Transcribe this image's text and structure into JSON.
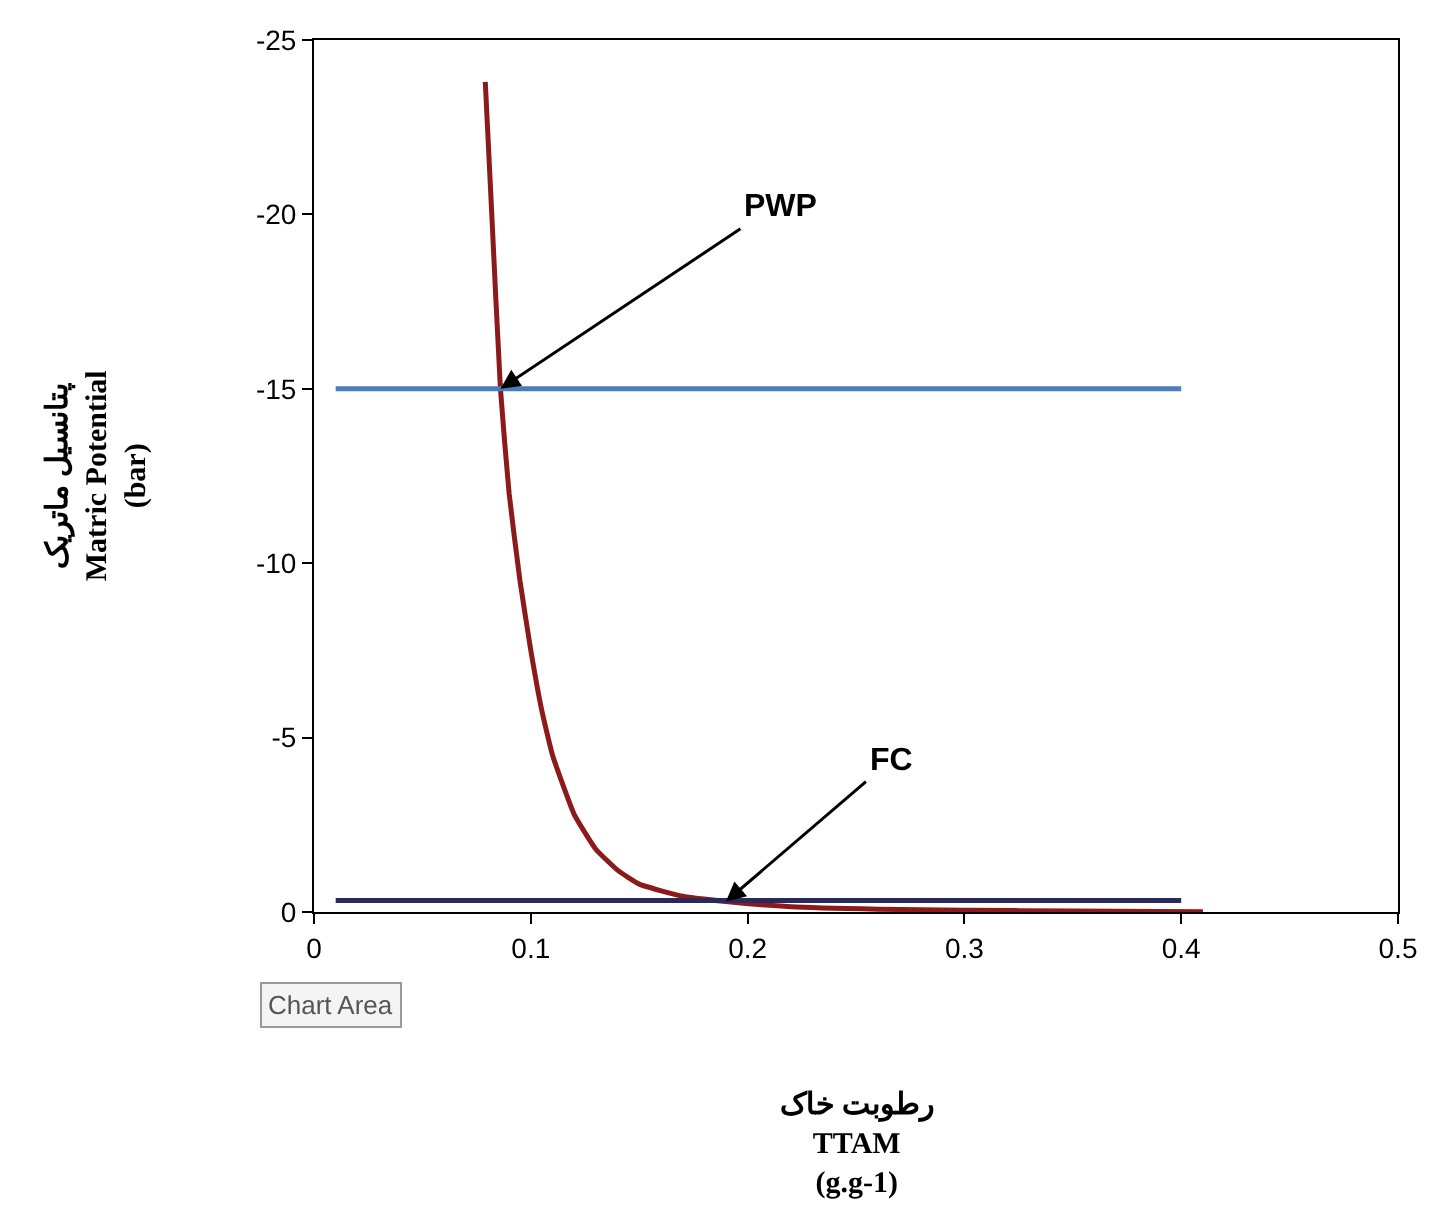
{
  "chart_data": {
    "type": "line",
    "xlabel": "رطوبت خاک\nTTAM\n(g.g-1)",
    "ylabel": "پتانسیل ماتریک\nMatric Potential\n(bar)",
    "xlim": [
      0,
      0.5
    ],
    "xticks": [
      0,
      0.1,
      0.2,
      0.3,
      0.4,
      0.5
    ],
    "ylim": [
      0,
      -25
    ],
    "yticks": [
      0,
      -5,
      -10,
      -15,
      -20,
      -25
    ],
    "marker": "none",
    "line_style": "solid",
    "series": [
      {
        "color": "#8b1a1a",
        "x": [
          0.079,
          0.082,
          0.086,
          0.09,
          0.095,
          0.1,
          0.105,
          0.11,
          0.12,
          0.13,
          0.14,
          0.15,
          0.17,
          0.19,
          0.22,
          0.26,
          0.3,
          0.35,
          0.41
        ],
        "values": [
          -23.8,
          -20,
          -15,
          -12,
          -9.5,
          -7.5,
          -5.8,
          -4.5,
          -2.8,
          -1.8,
          -1.2,
          -0.8,
          -0.45,
          -0.3,
          -0.15,
          -0.08,
          -0.05,
          -0.03,
          -0.01
        ]
      },
      {
        "color": "#4a7ebb",
        "x": [
          0.01,
          0.4
        ],
        "values": [
          -15,
          -15
        ]
      },
      {
        "color": "#2a2a5a",
        "x": [
          0.01,
          0.4
        ],
        "values": [
          -0.33,
          -0.33
        ]
      }
    ],
    "annotations": [
      {
        "text": "PWP",
        "x": 0.086,
        "y": -15
      },
      {
        "text": "FC",
        "x": 0.19,
        "y": -0.3
      },
      "Chart Area"
    ]
  }
}
